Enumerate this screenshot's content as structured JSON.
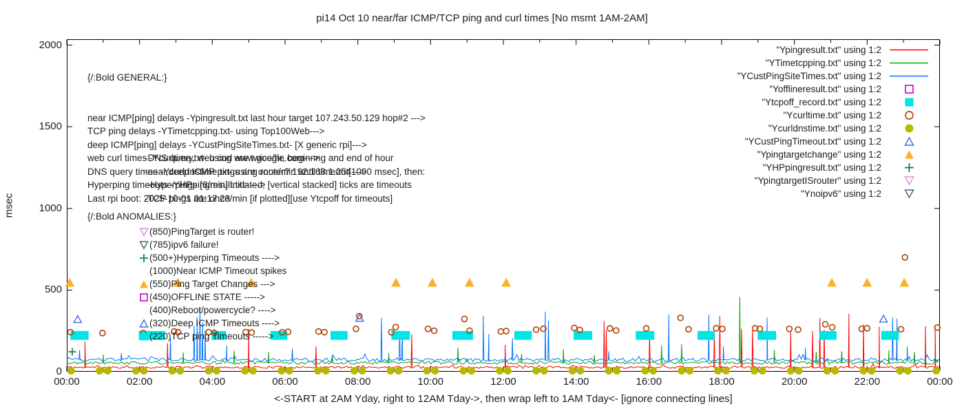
{
  "title": "pi14 Oct 10  near/far ICMP/TCP ping and curl times [No msmt 1AM-2AM]",
  "notes_general": {
    "header": "{/:Bold GENERAL:}",
    "lines": [
      "near ICMP[ping] delays -Ypingresult.txt last hour target 107.243.50.129 hop#2 --->",
      "TCP ping delays -YTimetcpping.txt- using Top100Web--->",
      "deep ICMP[ping] delays -YCustPingSiteTimes.txt- [X generic rpi]--->",
      "web curl times -Ycurltime.txt- using www.google.com--->",
      "DNS query times -Ycurldnstime.txt- using router? 192.168.1.254--->",
      "Hyperping timeouts -YHPpingresult.txt- --->",
      "Last rpi boot: 2025-10-01 01:17:23"
    ],
    "sub_lines": [
      "-DNS query, web curl are twice/hr, beginnng and end of hour",
      "-near,deep ICMP pings are once/min until timeout[1000 msec], then:",
      " -Hyperpings [6/min] initiated; [vertical stacked] ticks are timeouts",
      "-TCP pings are once/min [if plotted][use Ytcpoff for timeouts]"
    ]
  },
  "notes_anomalies": {
    "header": "{/:Bold ANOMALIES:}",
    "items": [
      {
        "marker": "triangle-down-open",
        "color": "#dd8add",
        "text": "(850)PingTarget is router!"
      },
      {
        "marker": "triangle-down-open",
        "color": "#3d6578",
        "text": "(785)ipv6 failure!"
      },
      {
        "marker": "plus",
        "color": "#008050",
        "text": "(500+)Hyperping Timeouts ---->"
      },
      {
        "marker": null,
        "color": null,
        "text": "(1000)Near ICMP Timeout spikes"
      },
      {
        "marker": "triangle-up-filled",
        "color": "#ffb02a",
        "text": "(550)Ping Target Changes --->"
      },
      {
        "marker": "square-open",
        "color": "#cc00cc",
        "text": "(450)OFFLINE STATE ----->"
      },
      {
        "marker": null,
        "color": null,
        "text": "(400)Reboot/powercycle? ---->"
      },
      {
        "marker": "triangle-up-open",
        "color": "#4169e1",
        "text": "(320)Deep ICMP Timeouts ---->"
      },
      {
        "marker": "square-filled",
        "color": "#00e5e5",
        "text": "(220)TCP ping Timeouts ----->"
      }
    ]
  },
  "legend": {
    "items": [
      {
        "label": "\"Ypingresult.txt\" using 1:2",
        "marker": "line",
        "color": "#ff0000"
      },
      {
        "label": "\"YTimetcpping.txt\" using 1:2",
        "marker": "line",
        "color": "#00a800"
      },
      {
        "label": "\"YCustPingSiteTimes.txt\" using 1:2",
        "marker": "line",
        "color": "#0072ff"
      },
      {
        "label": "\"Yofflineresult.txt\" using 1:2",
        "marker": "square-open",
        "color": "#cc00cc"
      },
      {
        "label": "\"Ytcpoff_record.txt\" using 1:2",
        "marker": "square-filled",
        "color": "#00e5e5"
      },
      {
        "label": "\"Ycurltime.txt\" using 1:2",
        "marker": "circle-open",
        "color": "#b04a10"
      },
      {
        "label": "\"Ycurldnstime.txt\" using 1:2",
        "marker": "circle-filled",
        "color": "#b8b800"
      },
      {
        "label": "\"YCustPingTimeout.txt\" using 1:2",
        "marker": "triangle-up-open",
        "color": "#4169e1"
      },
      {
        "label": "\"Ypingtargetchange\" using 1:2",
        "marker": "triangle-up-filled",
        "color": "#ffb02a"
      },
      {
        "label": "\"YHPpingresult.txt\" using 1:2",
        "marker": "plus",
        "color": "#008050"
      },
      {
        "label": "\"YpingtargetISrouter\" using 1:2",
        "marker": "triangle-down-open",
        "color": "#dd8add"
      },
      {
        "label": "\"Ynoipv6\" using 1:2",
        "marker": "triangle-down-open",
        "color": "#3d6578"
      }
    ]
  },
  "chart_data": {
    "type": "line",
    "title": "pi14 Oct 10  near/far ICMP/TCP ping and curl times [No msmt 1AM-2AM]",
    "xlabel": "<-START at 2AM Yday, right to 12AM Tday->, then wrap left to 1AM Tday<- [ignore connecting lines]",
    "ylabel": "msec",
    "xlim": [
      0,
      24
    ],
    "ylim": [
      0,
      2000
    ],
    "grid": false,
    "legend_position": "top-right",
    "x_tick_labels": [
      "00:00",
      "02:00",
      "04:00",
      "06:00",
      "08:00",
      "10:00",
      "12:00",
      "14:00",
      "16:00",
      "18:00",
      "20:00",
      "22:00",
      "00:00"
    ],
    "x_tick_hours": [
      0,
      2,
      4,
      6,
      8,
      10,
      12,
      14,
      16,
      18,
      20,
      22,
      24
    ],
    "y_ticks": [
      0,
      500,
      1000,
      1500,
      2000
    ],
    "series": [
      {
        "name": "Ypingresult.txt (near ICMP ping)",
        "color": "#ff0000",
        "seed": 11,
        "baseline": 27,
        "noise": 7,
        "spikes": [
          [
            0.5,
            185
          ],
          [
            2.77,
            175
          ],
          [
            5.0,
            262
          ],
          [
            6.85,
            155
          ],
          [
            9.48,
            230
          ],
          [
            12.05,
            165
          ],
          [
            14.77,
            312
          ],
          [
            14.83,
            255
          ],
          [
            16.02,
            250
          ],
          [
            17.8,
            255
          ],
          [
            17.95,
            340
          ],
          [
            18.55,
            262
          ],
          [
            18.85,
            268
          ],
          [
            19.9,
            252
          ],
          [
            20.5,
            250
          ],
          [
            20.7,
            330
          ],
          [
            20.82,
            258
          ],
          [
            21.5,
            355
          ],
          [
            21.9,
            290
          ],
          [
            22.33,
            275
          ],
          [
            23.6,
            278
          ],
          [
            23.87,
            272
          ]
        ]
      },
      {
        "name": "YTimetcpping.txt (TCP ping)",
        "color": "#00a800",
        "seed": 22,
        "baseline": 54,
        "noise": 9,
        "spikes": [
          [
            1.0,
            105
          ],
          [
            3.2,
            118
          ],
          [
            4.6,
            128
          ],
          [
            5.55,
            122
          ],
          [
            7.3,
            100
          ],
          [
            8.85,
            112
          ],
          [
            10.75,
            148
          ],
          [
            12.5,
            108
          ],
          [
            13.65,
            138
          ],
          [
            14.5,
            102
          ],
          [
            16.35,
            160
          ],
          [
            16.9,
            168
          ],
          [
            18.5,
            458
          ],
          [
            19.45,
            132
          ],
          [
            20.6,
            122
          ],
          [
            21.3,
            126
          ],
          [
            22.6,
            132
          ],
          [
            23.3,
            122
          ]
        ]
      },
      {
        "name": "YCustPingSiteTimes.txt (deep ICMP ping)",
        "color": "#0072ff",
        "seed": 33,
        "baseline": 72,
        "noise": 11,
        "spikes": [
          [
            0.35,
            132
          ],
          [
            1.5,
            112
          ],
          [
            2.85,
            205
          ],
          [
            3.5,
            282
          ],
          [
            3.58,
            335
          ],
          [
            3.66,
            392
          ],
          [
            3.73,
            302
          ],
          [
            3.8,
            252
          ],
          [
            4.4,
            160
          ],
          [
            6.2,
            140
          ],
          [
            8.65,
            328
          ],
          [
            9.15,
            252
          ],
          [
            9.22,
            232
          ],
          [
            11.45,
            342
          ],
          [
            11.6,
            232
          ],
          [
            12.25,
            205
          ],
          [
            13.15,
            368
          ],
          [
            13.24,
            312
          ],
          [
            14.9,
            125
          ],
          [
            16.55,
            352
          ],
          [
            17.65,
            348
          ],
          [
            18.05,
            155
          ],
          [
            19.25,
            332
          ],
          [
            20.3,
            145
          ],
          [
            22.7,
            332
          ],
          [
            22.82,
            325
          ],
          [
            23.1,
            155
          ]
        ]
      }
    ],
    "markers": [
      {
        "name": "Ytcpoff_record.txt (TCP ping timeouts)",
        "type": "rect",
        "color": "#00e5e5",
        "msec": 222,
        "half_height_msec": 27,
        "spans": [
          [
            0.1,
            0.6
          ],
          [
            1.98,
            2.7
          ],
          [
            3.98,
            4.38
          ],
          [
            5.6,
            6.06
          ],
          [
            7.25,
            7.72
          ],
          [
            8.92,
            9.43
          ],
          [
            10.6,
            11.17
          ],
          [
            12.3,
            12.78
          ],
          [
            13.93,
            14.44
          ],
          [
            15.64,
            16.15
          ],
          [
            17.34,
            17.81
          ],
          [
            18.99,
            19.5
          ],
          [
            20.69,
            21.16
          ],
          [
            22.39,
            22.87
          ]
        ]
      },
      {
        "name": "Ycurltime.txt (web curl times)",
        "type": "circle-open",
        "color": "#b04a10",
        "points": [
          [
            0.1,
            242
          ],
          [
            0.98,
            237
          ],
          [
            2.1,
            237
          ],
          [
            2.95,
            246
          ],
          [
            3.06,
            242
          ],
          [
            3.9,
            242
          ],
          [
            4.05,
            238
          ],
          [
            4.92,
            242
          ],
          [
            5.08,
            240
          ],
          [
            5.92,
            241
          ],
          [
            6.08,
            244
          ],
          [
            6.92,
            246
          ],
          [
            7.08,
            242
          ],
          [
            7.95,
            262
          ],
          [
            8.04,
            340
          ],
          [
            8.92,
            241
          ],
          [
            9.04,
            273
          ],
          [
            9.93,
            262
          ],
          [
            10.1,
            251
          ],
          [
            10.93,
            323
          ],
          [
            11.07,
            251
          ],
          [
            11.93,
            246
          ],
          [
            12.08,
            249
          ],
          [
            12.9,
            258
          ],
          [
            13.1,
            263
          ],
          [
            13.95,
            268
          ],
          [
            14.1,
            256
          ],
          [
            14.93,
            265
          ],
          [
            15.1,
            252
          ],
          [
            15.93,
            265
          ],
          [
            16.87,
            330
          ],
          [
            17.09,
            260
          ],
          [
            17.85,
            266
          ],
          [
            18.02,
            262
          ],
          [
            18.92,
            266
          ],
          [
            19.05,
            262
          ],
          [
            19.86,
            262
          ],
          [
            20.1,
            258
          ],
          [
            20.85,
            290
          ],
          [
            21.04,
            272
          ],
          [
            21.85,
            262
          ],
          [
            22.0,
            266
          ],
          [
            22.93,
            260
          ],
          [
            23.04,
            700
          ],
          [
            23.93,
            270
          ]
        ]
      },
      {
        "name": "Ycurldnstime.txt (DNS query times)",
        "type": "circle-filled",
        "color": "#b8b800",
        "msec": 6,
        "pattern": {
          "start": 0,
          "end": 24,
          "offsets": [
            -0.1,
            0.12
          ]
        }
      },
      {
        "name": "YCustPingTimeout.txt (deep ICMP timeouts)",
        "type": "triangle-up-open",
        "color": "#4169e1",
        "points": [
          [
            0.3,
            322
          ],
          [
            8.05,
            330
          ],
          [
            22.45,
            325
          ]
        ]
      },
      {
        "name": "Ypingtargetchange (ping target changes)",
        "type": "triangle-up-filled",
        "color": "#ffb02a",
        "points": [
          [
            0.08,
            548
          ],
          [
            3.05,
            548
          ],
          [
            5.07,
            548
          ],
          [
            9.05,
            548
          ],
          [
            10.05,
            548
          ],
          [
            11.07,
            548
          ],
          [
            12.08,
            548
          ],
          [
            21.03,
            548
          ],
          [
            22.0,
            548
          ],
          [
            23.02,
            548
          ]
        ]
      },
      {
        "name": "YHPpingresult.txt (hyperping timeouts)",
        "type": "plus",
        "color": "#008050",
        "points": [
          [
            0.15,
            122
          ]
        ]
      }
    ]
  }
}
